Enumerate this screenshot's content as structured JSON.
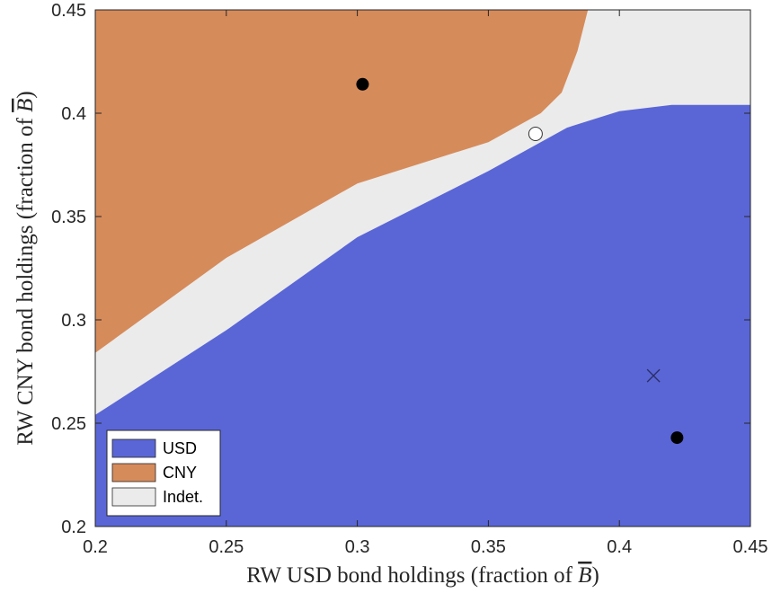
{
  "chart_data": {
    "type": "area",
    "title": "",
    "xlabel": "RW USD bond holdings (fraction of ",
    "ylabel": "RW CNY bond holdings (fraction of ",
    "label_symbol": "B",
    "label_close": ")",
    "xlim": [
      0.2,
      0.45
    ],
    "ylim": [
      0.2,
      0.45
    ],
    "xticks": [
      "0.2",
      "0.25",
      "0.3",
      "0.35",
      "0.4",
      "0.45"
    ],
    "yticks": [
      "0.2",
      "0.25",
      "0.3",
      "0.35",
      "0.4",
      "0.45"
    ],
    "grid": false,
    "legend_position": "bottom-left",
    "colors": {
      "USD": "#5a66d6",
      "CNY": "#d68b5b",
      "Indet.": "#ebebeb"
    },
    "regions": [
      {
        "name": "USD",
        "boundary_upper": [
          [
            0.2,
            0.254
          ],
          [
            0.25,
            0.295
          ],
          [
            0.3,
            0.34
          ],
          [
            0.35,
            0.372
          ],
          [
            0.38,
            0.393
          ],
          [
            0.4,
            0.401
          ],
          [
            0.42,
            0.404
          ],
          [
            0.45,
            0.404
          ]
        ]
      },
      {
        "name": "Indet.",
        "lower": "USD",
        "upper": "CNY"
      },
      {
        "name": "CNY",
        "boundary_lower": [
          [
            0.2,
            0.284
          ],
          [
            0.25,
            0.33
          ],
          [
            0.3,
            0.366
          ],
          [
            0.35,
            0.386
          ],
          [
            0.37,
            0.4
          ],
          [
            0.378,
            0.41
          ],
          [
            0.384,
            0.43
          ],
          [
            0.388,
            0.45
          ]
        ]
      }
    ],
    "markers": [
      {
        "type": "filled-circle",
        "x": 0.302,
        "y": 0.414
      },
      {
        "type": "open-circle",
        "x": 0.368,
        "y": 0.39
      },
      {
        "type": "cross",
        "x": 0.413,
        "y": 0.273
      },
      {
        "type": "filled-circle",
        "x": 0.422,
        "y": 0.243
      }
    ],
    "legend": [
      "USD",
      "CNY",
      "Indet."
    ]
  }
}
